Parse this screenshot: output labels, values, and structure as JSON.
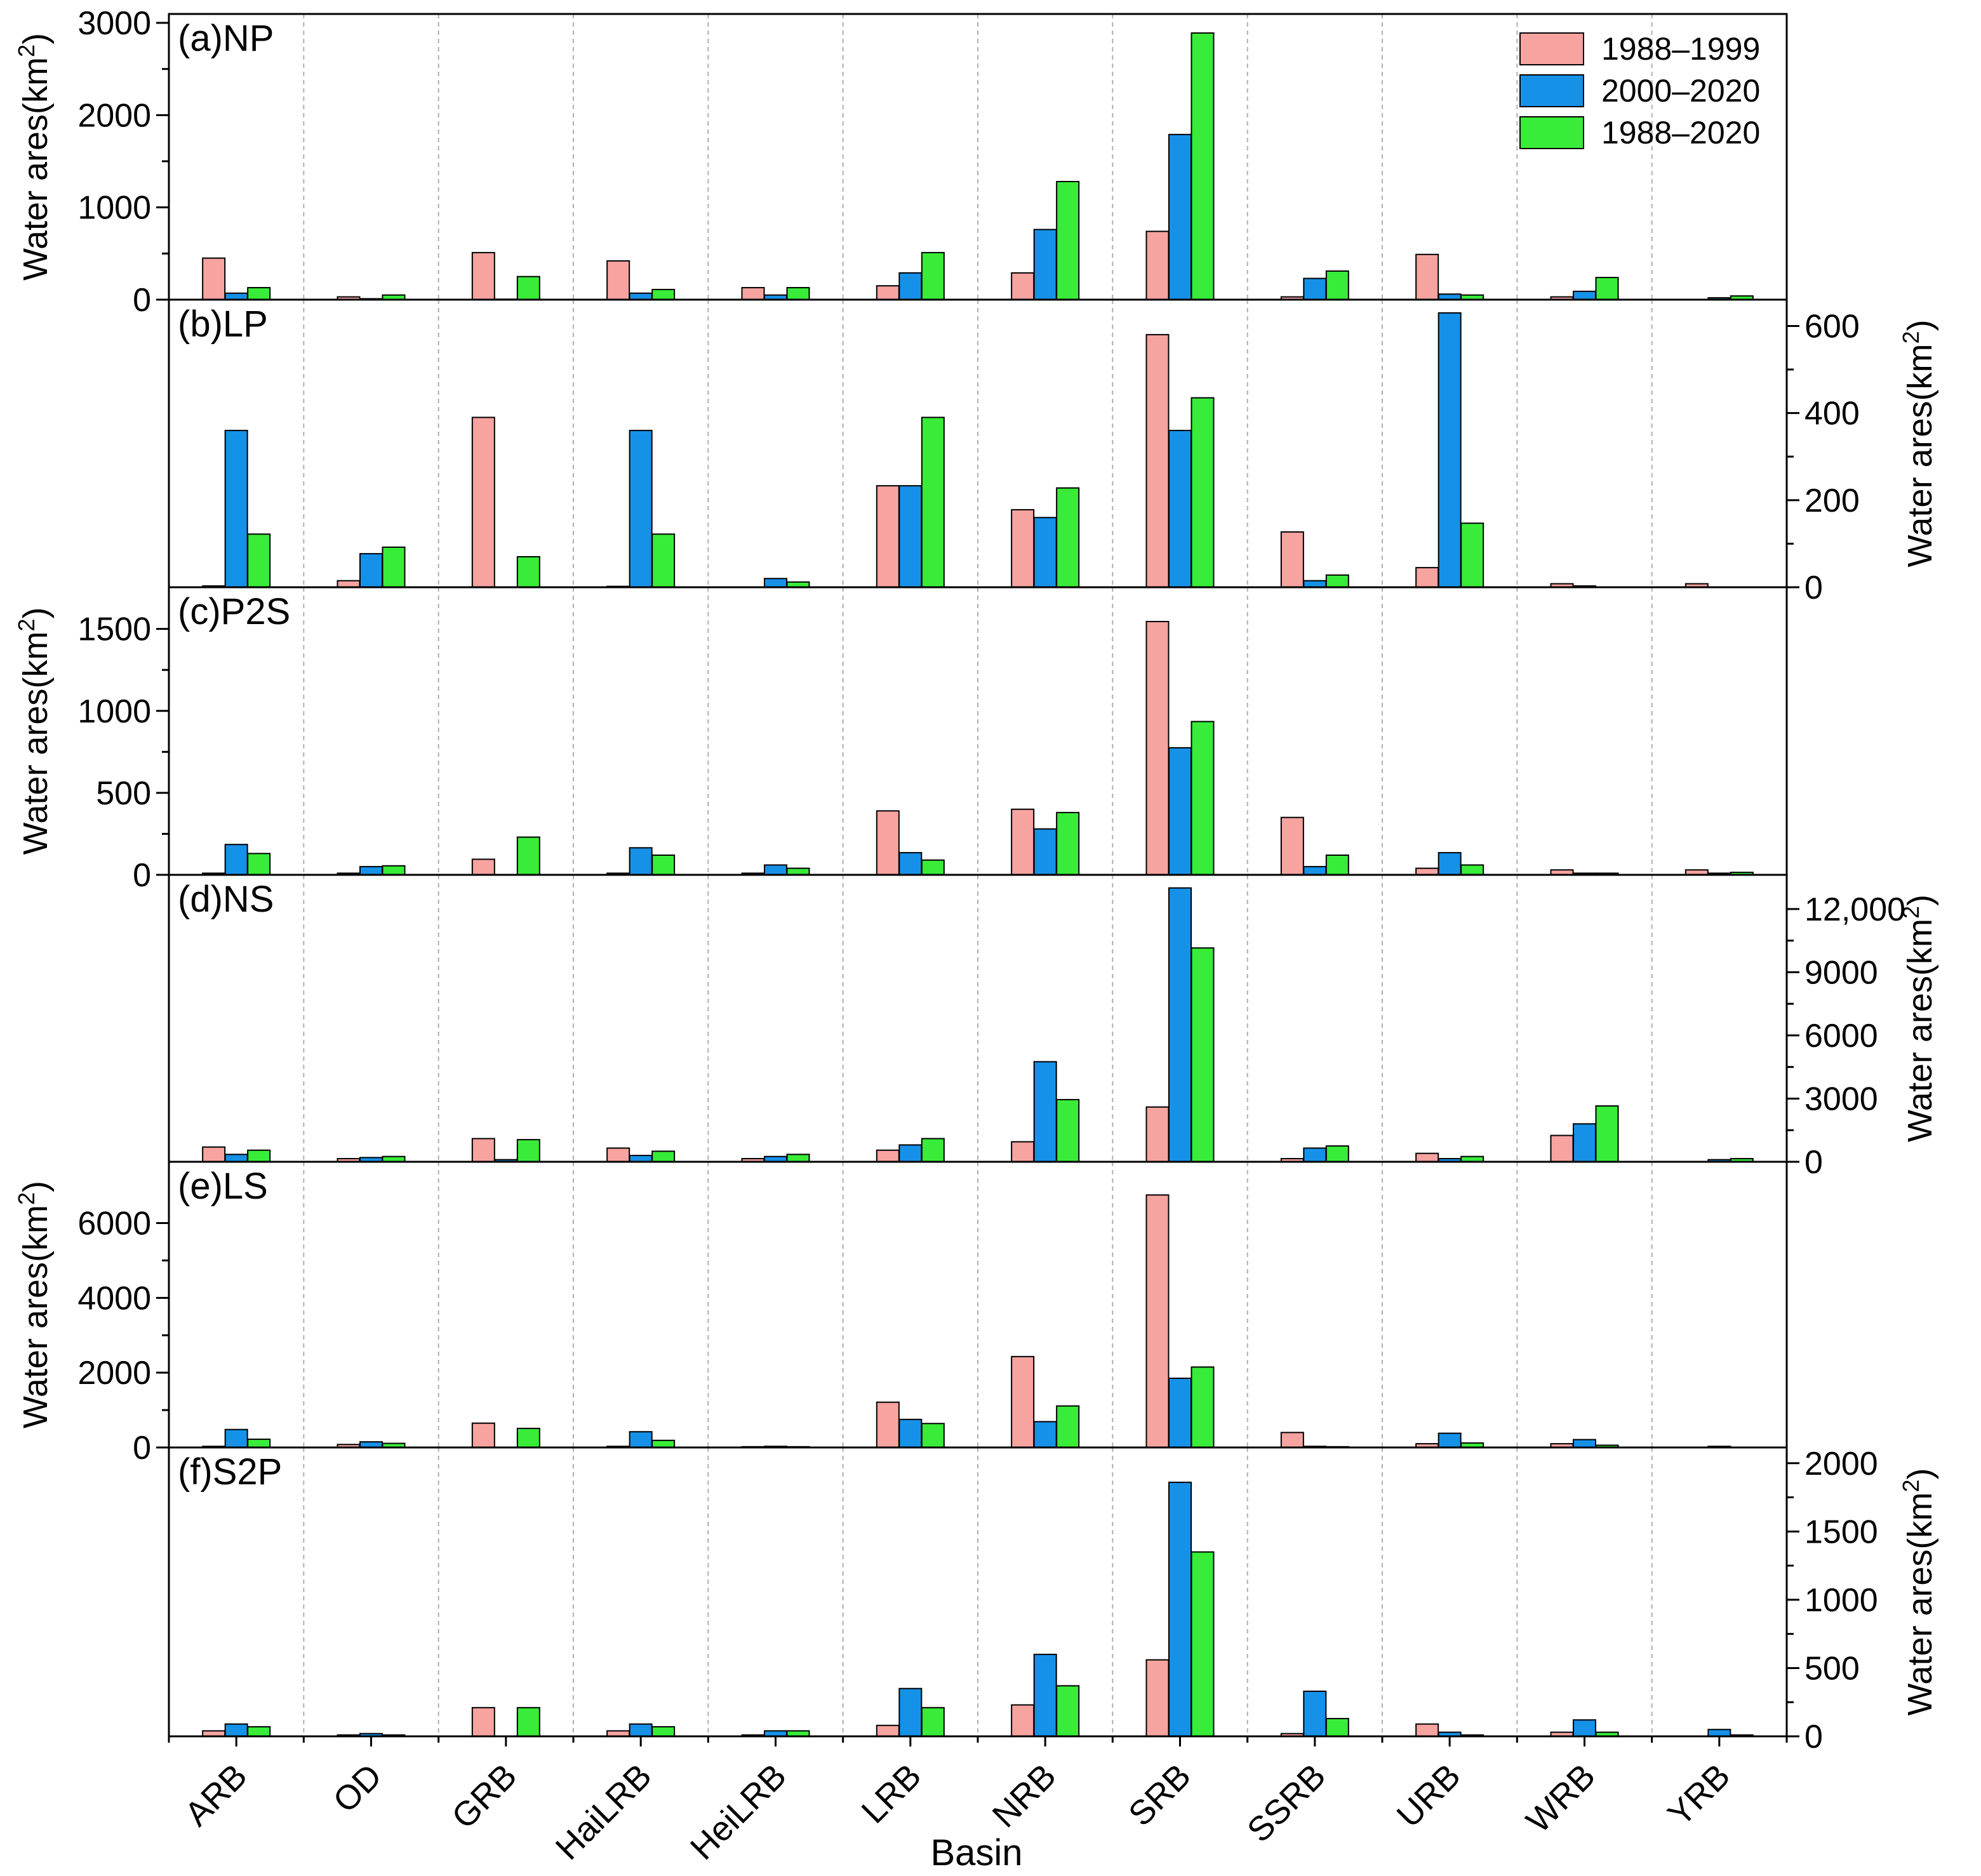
{
  "chart_data": {
    "type": "bar",
    "xlabel": "Basin",
    "categories": [
      "ARB",
      "OD",
      "GRB",
      "HaiLRB",
      "HeiLRB",
      "LRB",
      "NRB",
      "SRB",
      "SSRB",
      "URB",
      "WRB",
      "YRB"
    ],
    "legend": {
      "placement": "top-right",
      "entries": [
        "1988–1999",
        "2000–2020",
        "1988–2020"
      ]
    },
    "colors": {
      "1988–1999": "#f7a3a0",
      "2000–2020": "#1691e8",
      "1988–2020": "#39ec39",
      "divider": "#b0b0b0"
    },
    "grid": false,
    "panels": [
      {
        "id": "a",
        "title": "(a)NP",
        "ylabel": "Water ares(km²)",
        "ylabel_base": "Water ares(km",
        "ylabel_sup": "2",
        "ylabel_end": ")",
        "axis_side": "left",
        "ylim": [
          0,
          3000
        ],
        "yticks": [
          0,
          1000,
          2000,
          3000
        ],
        "ytick_labels": [
          "0",
          "1000",
          "2000",
          "3000"
        ],
        "series": [
          {
            "name": "1988–1999",
            "values": [
              450,
              30,
              510,
              420,
              130,
              150,
              290,
              740,
              30,
              490,
              30,
              0
            ]
          },
          {
            "name": "2000–2020",
            "values": [
              70,
              10,
              5,
              70,
              50,
              290,
              760,
              1790,
              230,
              60,
              90,
              20
            ]
          },
          {
            "name": "1988–2020",
            "values": [
              130,
              50,
              250,
              110,
              130,
              510,
              1280,
              2890,
              310,
              50,
              240,
              40
            ]
          }
        ]
      },
      {
        "id": "b",
        "title": "(b)LP",
        "ylabel": "Water ares(km²)",
        "ylabel_base": "Water ares(km",
        "ylabel_sup": "2",
        "ylabel_end": ")",
        "axis_side": "right",
        "ylim": [
          0,
          640
        ],
        "yticks": [
          0,
          200,
          400,
          600
        ],
        "ytick_labels": [
          "0",
          "200",
          "400",
          "600"
        ],
        "series": [
          {
            "name": "1988–1999",
            "values": [
              3,
              15,
              390,
              2,
              0,
              233,
              178,
              580,
              127,
              45,
              8,
              8
            ]
          },
          {
            "name": "2000–2020",
            "values": [
              360,
              77,
              0,
              360,
              20,
              233,
              160,
              360,
              15,
              630,
              3,
              0
            ]
          },
          {
            "name": "1988–2020",
            "values": [
              122,
              92,
              70,
              122,
              12,
              390,
              228,
              435,
              28,
              147,
              0,
              0
            ]
          }
        ]
      },
      {
        "id": "c",
        "title": "(c)P2S",
        "ylabel": "Water ares(km²)",
        "ylabel_base": "Water ares(km",
        "ylabel_sup": "2",
        "ylabel_end": ")",
        "axis_side": "left",
        "ylim": [
          0,
          1700
        ],
        "yticks": [
          0,
          500,
          1000,
          1500
        ],
        "ytick_labels": [
          "0",
          "500",
          "1000",
          "1500"
        ],
        "series": [
          {
            "name": "1988–1999",
            "values": [
              10,
              10,
              95,
              10,
              10,
              390,
              400,
              1545,
              350,
              40,
              30,
              30
            ]
          },
          {
            "name": "2000–2020",
            "values": [
              185,
              50,
              0,
              165,
              60,
              135,
              280,
              775,
              50,
              135,
              10,
              10
            ]
          },
          {
            "name": "1988–2020",
            "values": [
              130,
              55,
              230,
              120,
              40,
              90,
              380,
              935,
              120,
              60,
              10,
              15
            ]
          }
        ]
      },
      {
        "id": "d",
        "title": "(d)NS",
        "ylabel": "Water ares(km²)",
        "ylabel_base": "Water ares(km",
        "ylabel_sup": "2",
        "ylabel_end": ")",
        "axis_side": "right",
        "ylim": [
          0,
          13200
        ],
        "yticks": [
          0,
          3000,
          6000,
          9000,
          12000
        ],
        "ytick_labels": [
          "0",
          "3000",
          "6000",
          "9000",
          "12,000"
        ],
        "series": [
          {
            "name": "1988–1999",
            "values": [
              700,
              150,
              1100,
              650,
              150,
              550,
              950,
              2600,
              150,
              400,
              1250,
              0
            ]
          },
          {
            "name": "2000–2020",
            "values": [
              350,
              200,
              100,
              300,
              250,
              800,
              4750,
              13000,
              650,
              150,
              1800,
              100
            ]
          },
          {
            "name": "1988–2020",
            "values": [
              550,
              250,
              1050,
              500,
              350,
              1100,
              2950,
              10150,
              750,
              250,
              2650,
              150
            ]
          }
        ]
      },
      {
        "id": "e",
        "title": "(e)LS",
        "ylabel": "Water ares(km²)",
        "ylabel_base": "Water ares(km",
        "ylabel_sup": "2",
        "ylabel_end": ")",
        "axis_side": "left",
        "ylim": [
          0,
          7400
        ],
        "yticks": [
          0,
          2000,
          4000,
          6000
        ],
        "ytick_labels": [
          "0",
          "2000",
          "4000",
          "6000"
        ],
        "series": [
          {
            "name": "1988–1999",
            "values": [
              30,
              80,
              650,
              30,
              20,
              1210,
              2430,
              6750,
              400,
              100,
              100,
              0
            ]
          },
          {
            "name": "2000–2020",
            "values": [
              480,
              150,
              0,
              420,
              30,
              750,
              690,
              1850,
              30,
              380,
              210,
              30
            ]
          },
          {
            "name": "1988–2020",
            "values": [
              220,
              110,
              510,
              190,
              20,
              640,
              1110,
              2150,
              20,
              120,
              60,
              0
            ]
          }
        ]
      },
      {
        "id": "f",
        "title": "(f)S2P",
        "ylabel": "Water ares(km²)",
        "ylabel_base": "Water ares(km",
        "ylabel_sup": "2",
        "ylabel_end": ")",
        "axis_side": "right",
        "ylim": [
          0,
          2050
        ],
        "yticks": [
          0,
          500,
          1000,
          1500,
          2000
        ],
        "ytick_labels": [
          "0",
          "500",
          "1000",
          "1500",
          "2000"
        ],
        "series": [
          {
            "name": "1988–1999",
            "values": [
              40,
              10,
              210,
              40,
              10,
              80,
              230,
              560,
              20,
              90,
              30,
              0
            ]
          },
          {
            "name": "2000–2020",
            "values": [
              90,
              20,
              0,
              90,
              40,
              350,
              600,
              1860,
              330,
              30,
              120,
              50
            ]
          },
          {
            "name": "1988–2020",
            "values": [
              70,
              10,
              210,
              70,
              40,
              210,
              370,
              1350,
              130,
              10,
              30,
              10
            ]
          }
        ]
      }
    ]
  }
}
